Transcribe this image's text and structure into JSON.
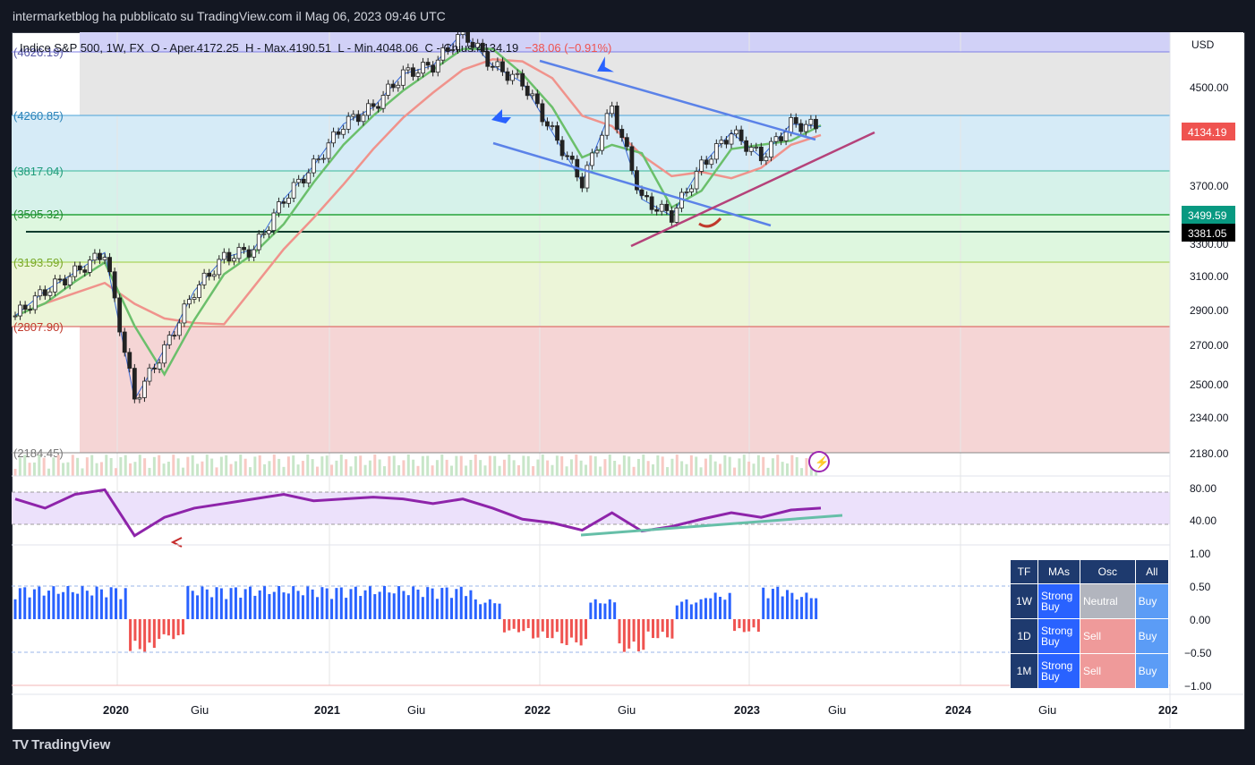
{
  "header": {
    "publish_text": "intermarketblog ha pubblicato su TradingView.com il Mag 06, 2023 09:46 UTC"
  },
  "legend": {
    "symbol": "Indice S&P 500, 1W, FX",
    "open_label": "O - Aper.",
    "open": "4172.25",
    "high_label": "H - Max.",
    "high": "4190.51",
    "low_label": "L - Min.",
    "low": "4048.06",
    "close_label": "C - Chius.",
    "close": "4134.19",
    "change": "−38.06 (−0.91%)"
  },
  "currency": "USD",
  "brand": "TradingView",
  "price_axis": [
    "4500.00",
    "3700.00",
    "3300.00",
    "3100.00",
    "2900.00",
    "2700.00",
    "2500.00",
    "2340.00",
    "2180.00"
  ],
  "price_badges": [
    {
      "value": "4134.19",
      "color": "#ef5350"
    },
    {
      "value": "3499.59",
      "color": "#089981"
    },
    {
      "value": "3381.05",
      "color": "#000000"
    }
  ],
  "fib_labels": [
    "(4626.19)",
    "(4260.85)",
    "(3817.04)",
    "(3505.32)",
    "(3193.59)",
    "(2807.90)",
    "(2184.45)"
  ],
  "time_axis": [
    "2020",
    "Giu",
    "2021",
    "Giu",
    "2022",
    "Giu",
    "2023",
    "Giu",
    "2024",
    "Giu",
    "202"
  ],
  "rsi_axis": [
    "80.00",
    "40.00"
  ],
  "osc_axis": [
    "1.00",
    "0.50",
    "0.00",
    "−0.50",
    "−1.00"
  ],
  "ta_table": {
    "headers": [
      "TF",
      "MAs",
      "Osc",
      "All"
    ],
    "rows": [
      {
        "tf": "1W",
        "mas": "Strong Buy",
        "osc": "Neutral",
        "all": "Buy"
      },
      {
        "tf": "1D",
        "mas": "Strong Buy",
        "osc": "Sell",
        "all": "Buy"
      },
      {
        "tf": "1M",
        "mas": "Strong Buy",
        "osc": "Sell",
        "all": "Buy"
      }
    ]
  },
  "chart_data": {
    "type": "candlestick",
    "symbol": "S&P 500",
    "timeframe": "1W",
    "ylim": [
      2180,
      4700
    ],
    "x": [
      "2019-10",
      "2019-12",
      "2020-01",
      "2020-02",
      "2020-03",
      "2020-04",
      "2020-06",
      "2020-08",
      "2020-10",
      "2020-12",
      "2021-02",
      "2021-04",
      "2021-06",
      "2021-08",
      "2021-10",
      "2021-12",
      "2022-01",
      "2022-03",
      "2022-05",
      "2022-06",
      "2022-08",
      "2022-09",
      "2022-10",
      "2022-12",
      "2023-02",
      "2023-03",
      "2023-04",
      "2023-05"
    ],
    "close": [
      3000,
      3150,
      3260,
      3380,
      2500,
      2800,
      3150,
      3350,
      3400,
      3700,
      3900,
      4150,
      4250,
      4450,
      4500,
      4700,
      4500,
      4400,
      4100,
      3800,
      4250,
      3700,
      3600,
      3900,
      4100,
      3950,
      4150,
      4134
    ],
    "fib_levels": [
      4626.19,
      4260.85,
      3817.04,
      3505.32,
      3193.59,
      2807.9,
      2184.45
    ],
    "horizontal_lines": [
      3499.59,
      3381.05
    ],
    "rsi_ylim": [
      20,
      95
    ],
    "rsi": [
      70,
      60,
      75,
      80,
      30,
      50,
      60,
      65,
      70,
      75,
      68,
      70,
      72,
      70,
      65,
      70,
      60,
      48,
      44,
      36,
      55,
      35,
      40,
      48,
      55,
      50,
      58,
      60
    ],
    "osc_ylim": [
      -1,
      1
    ],
    "osc": [
      0.5,
      0.5,
      0.5,
      0.5,
      -0.5,
      -0.3,
      0.5,
      0.5,
      0.5,
      0.5,
      0.5,
      0.5,
      0.5,
      0.5,
      0.5,
      0.5,
      0.3,
      -0.2,
      -0.3,
      -0.4,
      0.3,
      -0.5,
      -0.3,
      0.3,
      0.4,
      -0.2,
      0.5,
      0.4
    ]
  }
}
